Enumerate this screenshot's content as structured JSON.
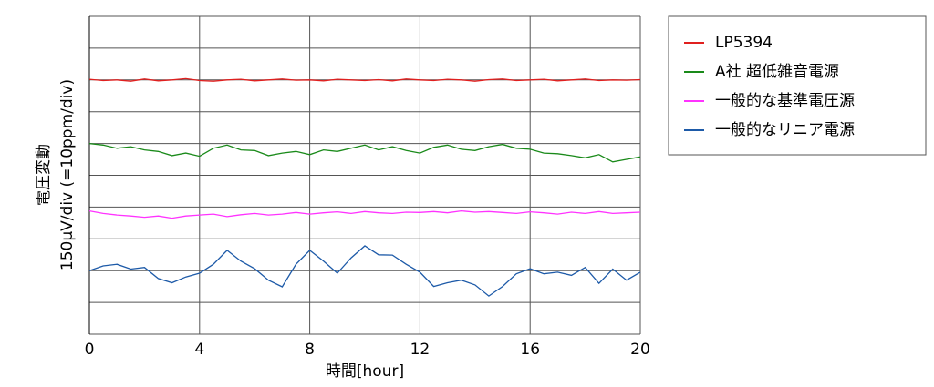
{
  "chart_data": {
    "type": "line",
    "xlabel": "時間[hour]",
    "ylabel": [
      "電圧変動",
      "150μV/div (=10ppm/div)"
    ],
    "x": [
      0,
      0.5,
      1,
      1.5,
      2,
      2.5,
      3,
      3.5,
      4,
      4.5,
      5,
      5.5,
      6,
      6.5,
      7,
      7.5,
      8,
      8.5,
      9,
      9.5,
      10,
      10.5,
      11,
      11.5,
      12,
      12.5,
      13,
      13.5,
      14,
      14.5,
      15,
      15.5,
      16,
      16.5,
      17,
      17.5,
      18,
      18.5,
      19,
      19.5,
      20
    ],
    "series": [
      {
        "name": "LP5394",
        "color": "#e0201f",
        "values": [
          8.02,
          7.98,
          8.0,
          7.96,
          8.03,
          7.97,
          8.0,
          8.04,
          7.98,
          7.96,
          8.0,
          8.02,
          7.97,
          8.0,
          8.03,
          7.99,
          8.0,
          7.97,
          8.02,
          8.0,
          7.98,
          8.01,
          7.97,
          8.03,
          8.0,
          7.98,
          8.02,
          8.0,
          7.96,
          8.01,
          8.03,
          7.98,
          8.0,
          8.02,
          7.97,
          8.0,
          8.03,
          7.98,
          8.0,
          7.99,
          8.01
        ]
      },
      {
        "name": "A社 超低雑音電源",
        "color": "#1a8a1a",
        "values": [
          6.0,
          5.95,
          5.85,
          5.9,
          5.8,
          5.75,
          5.62,
          5.7,
          5.6,
          5.85,
          5.95,
          5.8,
          5.78,
          5.62,
          5.7,
          5.75,
          5.65,
          5.8,
          5.75,
          5.85,
          5.95,
          5.8,
          5.9,
          5.78,
          5.7,
          5.88,
          5.95,
          5.82,
          5.78,
          5.9,
          5.97,
          5.85,
          5.82,
          5.7,
          5.68,
          5.62,
          5.55,
          5.65,
          5.42,
          5.5,
          5.58
        ]
      },
      {
        "name": "一般的な基準電圧源",
        "color": "#ff33ff",
        "values": [
          3.88,
          3.8,
          3.75,
          3.72,
          3.68,
          3.72,
          3.65,
          3.72,
          3.75,
          3.78,
          3.7,
          3.76,
          3.8,
          3.75,
          3.78,
          3.83,
          3.78,
          3.82,
          3.85,
          3.8,
          3.86,
          3.82,
          3.8,
          3.84,
          3.83,
          3.86,
          3.82,
          3.88,
          3.84,
          3.86,
          3.83,
          3.8,
          3.85,
          3.82,
          3.78,
          3.84,
          3.8,
          3.86,
          3.8,
          3.82,
          3.84
        ]
      },
      {
        "name": "一般的なリニア電源",
        "color": "#1d5aa8",
        "values": [
          2.0,
          2.15,
          2.2,
          2.05,
          2.1,
          1.75,
          1.62,
          1.8,
          1.92,
          2.2,
          2.64,
          2.3,
          2.06,
          1.7,
          1.49,
          2.2,
          2.64,
          2.3,
          1.92,
          2.4,
          2.78,
          2.5,
          2.49,
          2.2,
          1.95,
          1.5,
          1.62,
          1.7,
          1.55,
          1.2,
          1.5,
          1.9,
          2.06,
          1.9,
          1.95,
          1.85,
          2.1,
          1.6,
          2.05,
          1.7,
          1.95
        ]
      }
    ],
    "xlim": [
      0,
      20
    ],
    "xticks": [
      0,
      4,
      8,
      12,
      16,
      20
    ],
    "ylim": [
      0,
      10
    ],
    "yticks": [
      0,
      1,
      2,
      3,
      4,
      5,
      6,
      7,
      8,
      9,
      10
    ],
    "ytick_labels": false,
    "grid": true,
    "legend": "right-outside"
  }
}
